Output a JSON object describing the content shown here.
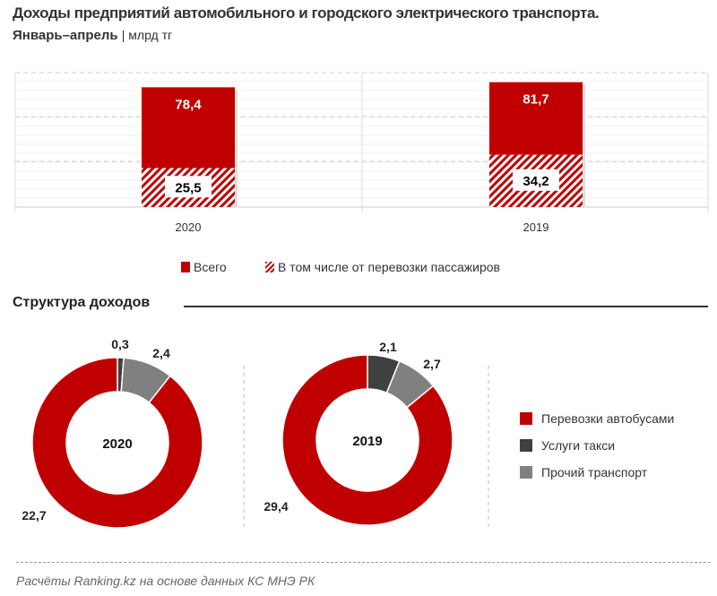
{
  "title": "Доходы предприятий автомобильного и городского электрического транспорта.",
  "subtitle": "Январь–апрель",
  "unit": "| млрд тг",
  "section_title": "Структура доходов",
  "source": "Расчёты Ranking.kz на основе данных  КС МНЭ РК",
  "colors": {
    "red": "#c00000",
    "dark": "#404040",
    "gray": "#808080"
  },
  "chart_data": [
    {
      "type": "bar",
      "categories": [
        "2020",
        "2019"
      ],
      "series": [
        {
          "name": "Всего",
          "values": [
            78.4,
            81.7
          ],
          "labels": [
            "78,4",
            "81,7"
          ]
        },
        {
          "name": "В том числе от перевозки пассажиров",
          "values": [
            25.5,
            34.2
          ],
          "labels": [
            "25,5",
            "34,2"
          ],
          "pattern": "hatched"
        }
      ],
      "ylim": [
        0,
        88
      ],
      "grid": true,
      "legend": "bottom"
    },
    {
      "type": "pie",
      "donut": true,
      "center_label": "2020",
      "slices": [
        {
          "name": "Услуги такси",
          "value": 0.3,
          "label": "0,3"
        },
        {
          "name": "Прочий транспорт",
          "value": 2.4,
          "label": "2,4"
        },
        {
          "name": "Перевозки автобусами",
          "value": 22.7,
          "label": "22,7"
        }
      ]
    },
    {
      "type": "pie",
      "donut": true,
      "center_label": "2019",
      "slices": [
        {
          "name": "Услуги такси",
          "value": 2.1,
          "label": "2,1"
        },
        {
          "name": "Прочий транспорт",
          "value": 2.7,
          "label": "2,7"
        },
        {
          "name": "Перевозки автобусами",
          "value": 29.4,
          "label": "29,4"
        }
      ]
    }
  ],
  "pie_legend": [
    "Перевозки автобусами",
    "Услуги такси",
    "Прочий транспорт"
  ]
}
